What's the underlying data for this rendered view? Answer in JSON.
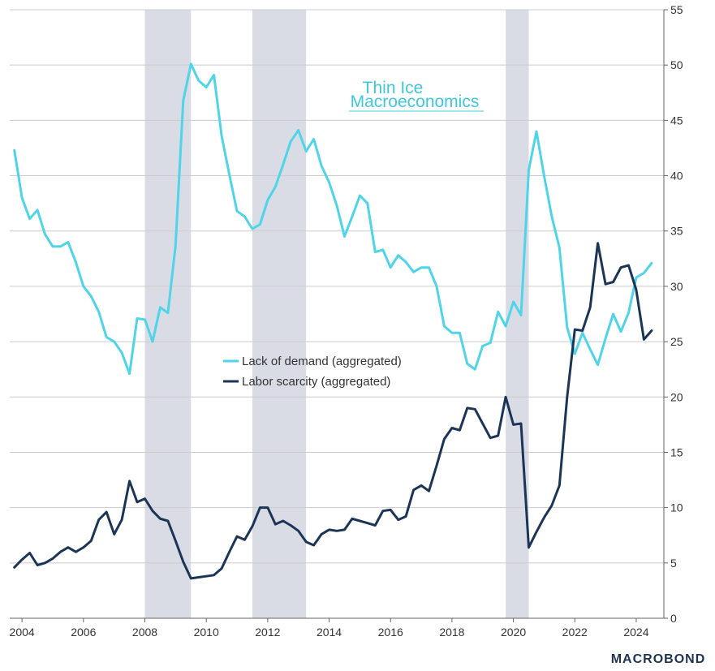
{
  "brand": {
    "line1": "Thin Ice",
    "line2": "Macroeconomics",
    "color": "#3fc8dc"
  },
  "footer": {
    "logo_text": "MACROBOND",
    "color": "#1f3350"
  },
  "chart_data": {
    "type": "line",
    "title": "",
    "xlabel": "",
    "ylabel": "",
    "xlim": [
      2003.6,
      2024.9
    ],
    "ylim": [
      0,
      55
    ],
    "x_ticks": [
      2004,
      2006,
      2008,
      2010,
      2012,
      2014,
      2016,
      2018,
      2020,
      2022,
      2024
    ],
    "x_tick_labels": [
      "2004",
      "2006",
      "2008",
      "2010",
      "2012",
      "2014",
      "2016",
      "2018",
      "2020",
      "2022",
      "2024"
    ],
    "y_ticks": [
      0,
      5,
      10,
      15,
      20,
      25,
      30,
      35,
      40,
      45,
      50,
      55
    ],
    "y_tick_labels": [
      "0",
      "5",
      "10",
      "15",
      "20",
      "25",
      "30",
      "35",
      "40",
      "45",
      "50",
      "55"
    ],
    "y_axis_side": "right",
    "grid": "horizontal",
    "legend_position": "center-left",
    "recessions": [
      [
        2008.0,
        2009.5
      ],
      [
        2011.5,
        2013.25
      ],
      [
        2019.75,
        2020.5
      ]
    ],
    "recession_color": "#d9dce5",
    "series": [
      {
        "name": "Lack of demand (aggregated)",
        "color": "#4fd4e8",
        "x": [
          2003.75,
          2004.0,
          2004.25,
          2004.5,
          2004.75,
          2005.0,
          2005.25,
          2005.5,
          2005.75,
          2006.0,
          2006.25,
          2006.5,
          2006.75,
          2007.0,
          2007.25,
          2007.5,
          2007.75,
          2008.0,
          2008.25,
          2008.5,
          2008.75,
          2009.0,
          2009.25,
          2009.5,
          2009.75,
          2010.0,
          2010.25,
          2010.5,
          2010.75,
          2011.0,
          2011.25,
          2011.5,
          2011.75,
          2012.0,
          2012.25,
          2012.5,
          2012.75,
          2013.0,
          2013.25,
          2013.5,
          2013.75,
          2014.0,
          2014.25,
          2014.5,
          2014.75,
          2015.0,
          2015.25,
          2015.5,
          2015.75,
          2016.0,
          2016.25,
          2016.5,
          2016.75,
          2017.0,
          2017.25,
          2017.5,
          2017.75,
          2018.0,
          2018.25,
          2018.5,
          2018.75,
          2019.0,
          2019.25,
          2019.5,
          2019.75,
          2020.0,
          2020.25,
          2020.5,
          2020.75,
          2021.0,
          2021.25,
          2021.5,
          2021.75,
          2022.0,
          2022.25,
          2022.5,
          2022.75,
          2023.0,
          2023.25,
          2023.5,
          2023.75,
          2024.0,
          2024.25,
          2024.5
        ],
        "values": [
          42.3,
          38.0,
          36.1,
          36.9,
          34.7,
          33.6,
          33.6,
          34.0,
          32.2,
          30.0,
          29.1,
          27.7,
          25.4,
          25.0,
          24.0,
          22.1,
          27.1,
          27.0,
          25.0,
          28.1,
          27.6,
          33.7,
          46.8,
          50.1,
          48.6,
          48.0,
          49.1,
          43.6,
          40.1,
          36.8,
          36.3,
          35.2,
          35.6,
          37.8,
          39.0,
          41.0,
          43.1,
          44.1,
          42.2,
          43.3,
          40.9,
          39.4,
          37.3,
          34.5,
          36.3,
          38.2,
          37.5,
          33.1,
          33.3,
          31.7,
          32.8,
          32.2,
          31.3,
          31.7,
          31.7,
          30.0,
          26.4,
          25.8,
          25.8,
          23.0,
          22.5,
          24.6,
          24.9,
          27.7,
          26.4,
          28.6,
          27.4,
          40.5,
          44.0,
          40.0,
          36.3,
          33.5,
          26.3,
          23.9,
          25.8,
          24.3,
          22.9,
          25.3,
          27.5,
          25.9,
          27.6,
          30.8,
          31.2,
          32.1
        ]
      },
      {
        "name": "Labor scarcity (aggregated)",
        "color": "#1c3556",
        "x": [
          2003.75,
          2004.0,
          2004.25,
          2004.5,
          2004.75,
          2005.0,
          2005.25,
          2005.5,
          2005.75,
          2006.0,
          2006.25,
          2006.5,
          2006.75,
          2007.0,
          2007.25,
          2007.5,
          2007.75,
          2008.0,
          2008.25,
          2008.5,
          2008.75,
          2009.0,
          2009.25,
          2009.5,
          2009.75,
          2010.0,
          2010.25,
          2010.5,
          2010.75,
          2011.0,
          2011.25,
          2011.5,
          2011.75,
          2012.0,
          2012.25,
          2012.5,
          2012.75,
          2013.0,
          2013.25,
          2013.5,
          2013.75,
          2014.0,
          2014.25,
          2014.5,
          2014.75,
          2015.0,
          2015.25,
          2015.5,
          2015.75,
          2016.0,
          2016.25,
          2016.5,
          2016.75,
          2017.0,
          2017.25,
          2017.5,
          2017.75,
          2018.0,
          2018.25,
          2018.5,
          2018.75,
          2019.0,
          2019.25,
          2019.5,
          2019.75,
          2020.0,
          2020.25,
          2020.5,
          2020.75,
          2021.0,
          2021.25,
          2021.5,
          2021.75,
          2022.0,
          2022.25,
          2022.5,
          2022.75,
          2023.0,
          2023.25,
          2023.5,
          2023.75,
          2024.0,
          2024.25,
          2024.5
        ],
        "values": [
          4.6,
          5.3,
          5.9,
          4.8,
          5.0,
          5.4,
          6.0,
          6.4,
          6.0,
          6.4,
          7.0,
          8.9,
          9.6,
          7.6,
          8.9,
          12.4,
          10.5,
          10.8,
          9.7,
          9.0,
          8.8,
          7.0,
          5.1,
          3.6,
          3.7,
          3.8,
          3.9,
          4.5,
          6.0,
          7.4,
          7.1,
          8.3,
          10.0,
          10.0,
          8.5,
          8.8,
          8.4,
          7.9,
          6.9,
          6.6,
          7.6,
          8.0,
          7.9,
          8.0,
          9.0,
          8.8,
          8.6,
          8.4,
          9.7,
          9.8,
          8.9,
          9.2,
          11.6,
          12.0,
          11.5,
          13.8,
          16.2,
          17.2,
          17.0,
          19.0,
          18.9,
          17.6,
          16.3,
          16.5,
          20.0,
          17.5,
          17.6,
          6.4,
          7.8,
          9.1,
          10.2,
          12.0,
          20.0,
          26.1,
          26.0,
          28.1,
          33.9,
          30.2,
          30.4,
          31.7,
          31.9,
          29.7,
          25.2,
          26.0
        ]
      }
    ]
  }
}
